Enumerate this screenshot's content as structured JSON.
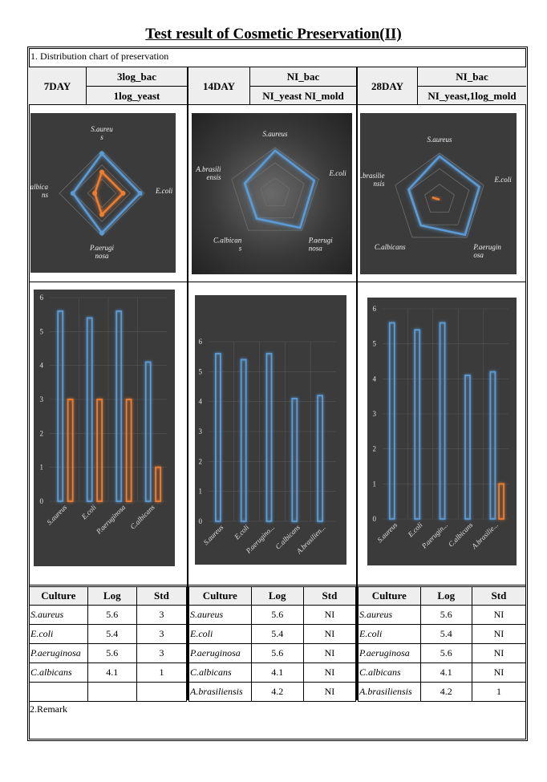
{
  "title": "Test result of Cosmetic Preservation(II)",
  "section1": "1. Distribution chart of preservation",
  "section2": "2.Remark",
  "columns": [
    {
      "day": "7DAY",
      "row1": "3log_bac",
      "row2": "1log_yeast"
    },
    {
      "day": "14DAY",
      "row1": "NI_bac",
      "row2": "NI_yeast NI_mold"
    },
    {
      "day": "28DAY",
      "row1": "NI_bac",
      "row2": "NI_yeast,1log_mold"
    }
  ],
  "colors": {
    "blue": "#5b9bd5",
    "orange": "#ed7d31",
    "panel": "#3b3b3b"
  },
  "chart_data": [
    {
      "type": "radar",
      "axes": [
        "S.aureus",
        "E.coli",
        "P.aeruginosa",
        "C.albicans"
      ],
      "axis_labels": [
        [
          "S.aureu",
          "s"
        ],
        [
          "E.coli"
        ],
        [
          "P.aerugi",
          "nosa"
        ],
        [
          "C.albica",
          "ns"
        ]
      ],
      "series": [
        {
          "values": [
            5.6,
            5.4,
            5.6,
            4.1
          ]
        },
        {
          "values": [
            3,
            3,
            3,
            1
          ]
        }
      ],
      "rmax": 6
    },
    {
      "type": "radar",
      "axes": [
        "S.aureus",
        "E.coli",
        "P.aeruginosa",
        "C.albicans",
        "A.brasiliensis"
      ],
      "axis_labels": [
        [
          "S.aureus"
        ],
        [
          "E.coli"
        ],
        [
          "P.aerugi",
          "nosa"
        ],
        [
          "C.albican",
          "s"
        ],
        [
          "A.brasili",
          "ensis"
        ]
      ],
      "series": [
        {
          "values": [
            5.6,
            5.4,
            5.6,
            4.1,
            4.2
          ]
        },
        {
          "values": [
            0,
            0,
            0,
            0,
            0
          ]
        }
      ],
      "rmax": 6
    },
    {
      "type": "radar",
      "axes": [
        "S.aureus",
        "E.coli",
        "P.aeruginosa",
        "C.albicans",
        "A.brasiliensis"
      ],
      "axis_labels": [
        [
          "S.aureus"
        ],
        [
          "E.coli"
        ],
        [
          "P.aerugin",
          "osa"
        ],
        [
          "C.albicans"
        ],
        [
          "A.brasilie",
          "nsis"
        ]
      ],
      "series": [
        {
          "values": [
            5.6,
            5.4,
            5.6,
            4.1,
            4.2
          ]
        },
        {
          "values": [
            0,
            0,
            0,
            0,
            1
          ]
        }
      ],
      "rmax": 6
    },
    {
      "type": "bar",
      "categories": [
        "S.aureus",
        "E.coli",
        "P.aeruginosa",
        "C.albicans"
      ],
      "series": [
        {
          "values": [
            5.6,
            5.4,
            5.6,
            4.1
          ]
        },
        {
          "values": [
            3,
            3,
            3,
            1
          ]
        }
      ],
      "yticks": [
        "0",
        "1",
        "2",
        "3",
        "4",
        "5",
        "6"
      ],
      "ylim": [
        0,
        6
      ]
    },
    {
      "type": "bar",
      "categories": [
        "S.aureus",
        "E.coli",
        "P.aerugino...",
        "C.albicans",
        "A.brasilien..."
      ],
      "series": [
        {
          "values": [
            5.6,
            5.4,
            5.6,
            4.1,
            4.2
          ]
        }
      ],
      "yticks": [
        "0",
        "1",
        "2",
        "3",
        "4",
        "5",
        "6"
      ],
      "ylim": [
        0,
        6
      ]
    },
    {
      "type": "bar",
      "categories": [
        "S.aureus",
        "E.coli",
        "P.aerugin...",
        "C.albicans",
        "A.brasilie..."
      ],
      "series": [
        {
          "values": [
            5.6,
            5.4,
            5.6,
            4.1,
            4.2
          ]
        },
        {
          "values": [
            0,
            0,
            0,
            0,
            1
          ]
        }
      ],
      "yticks": [
        "0",
        "1",
        "2",
        "3",
        "4",
        "5",
        "6"
      ],
      "ylim": [
        0,
        6
      ]
    }
  ],
  "tables": [
    {
      "headers": [
        "Culture",
        "Log",
        "Std"
      ],
      "rows": [
        [
          "S.aureus",
          "5.6",
          "3"
        ],
        [
          "E.coli",
          "5.4",
          "3"
        ],
        [
          "P.aeruginosa",
          "5.6",
          "3"
        ],
        [
          "C.albicans",
          "4.1",
          "1"
        ],
        [
          "",
          "",
          ""
        ]
      ]
    },
    {
      "headers": [
        "Culture",
        "Log",
        "Std"
      ],
      "rows": [
        [
          "S.aureus",
          "5.6",
          "NI"
        ],
        [
          "E.coli",
          "5.4",
          "NI"
        ],
        [
          "P.aeruginosa",
          "5.6",
          "NI"
        ],
        [
          "C.albicans",
          "4.1",
          "NI"
        ],
        [
          "A.brasiliensis",
          "4.2",
          "NI"
        ]
      ]
    },
    {
      "headers": [
        "Culture",
        "Log",
        "Std"
      ],
      "rows": [
        [
          "S.aureus",
          "5.6",
          "NI"
        ],
        [
          "E.coli",
          "5.4",
          "NI"
        ],
        [
          "P.aeruginosa",
          "5.6",
          "NI"
        ],
        [
          "C.albicans",
          "4.1",
          "NI"
        ],
        [
          "A.brasiliensis",
          "4.2",
          "1"
        ]
      ]
    }
  ]
}
